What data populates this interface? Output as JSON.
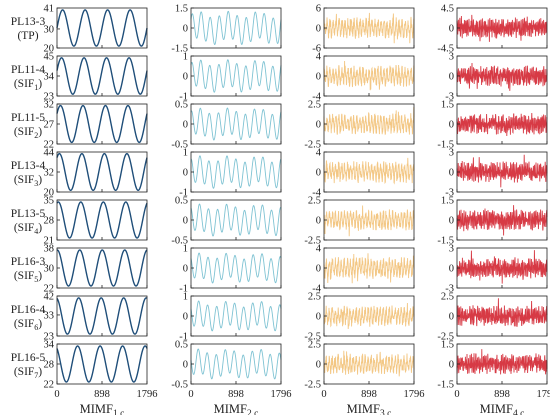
{
  "chart_data": {
    "type": "line",
    "columns": [
      {
        "title": "MIMF",
        "subscript": "1,c",
        "color": "#1F4E79"
      },
      {
        "title": "MIMF",
        "subscript": "2,c",
        "color": "#7FC3D3"
      },
      {
        "title": "MIMF",
        "subscript": "3,c",
        "color": "#F3C784"
      },
      {
        "title": "MIMF",
        "subscript": "4,c",
        "color": "#D73A45"
      }
    ],
    "rows": [
      {
        "name": "PL13-3",
        "sub_main": "(TP)",
        "sub_index": ""
      },
      {
        "name": "PL11-4",
        "sub_main": "(SIF",
        "sub_index": "1"
      },
      {
        "name": "PL11-5",
        "sub_main": "(SIF",
        "sub_index": "2"
      },
      {
        "name": "PL13-4",
        "sub_main": "(SIF",
        "sub_index": "3"
      },
      {
        "name": "PL13-5",
        "sub_main": "(SIF",
        "sub_index": "4"
      },
      {
        "name": "PL16-3",
        "sub_main": "(SIF",
        "sub_index": "5"
      },
      {
        "name": "PL16-4",
        "sub_main": "(SIF",
        "sub_index": "6"
      },
      {
        "name": "PL16-5",
        "sub_main": "(SIF",
        "sub_index": "7"
      }
    ],
    "x_range": [
      0,
      1796
    ],
    "x_ticks": [
      0,
      898,
      1796
    ],
    "x_tick_labels": [
      "0",
      "898",
      "1796"
    ],
    "panels": [
      [
        {
          "ylim": [
            20,
            41
          ],
          "yticks": [
            "41",
            "30",
            "20"
          ],
          "ytick_values": [
            41,
            30,
            20
          ],
          "center": 30.5,
          "amp": 9.5,
          "periods": 4,
          "noise": 0
        },
        {
          "ylim": [
            23,
            45
          ],
          "yticks": [
            "45",
            "34",
            "23"
          ],
          "ytick_values": [
            45,
            34,
            23
          ],
          "center": 34,
          "amp": 10,
          "periods": 4,
          "noise": 0
        },
        {
          "ylim": [
            22,
            32
          ],
          "yticks": [
            "32",
            "27",
            "22"
          ],
          "ytick_values": [
            32,
            27,
            22
          ],
          "center": 27,
          "amp": 4.6,
          "periods": 4,
          "noise": 0
        },
        {
          "ylim": [
            20,
            44
          ],
          "yticks": [
            "44",
            "32",
            "20"
          ],
          "ytick_values": [
            44,
            32,
            20
          ],
          "center": 32,
          "amp": 11,
          "periods": 4,
          "noise": 0
        },
        {
          "ylim": [
            21,
            35
          ],
          "yticks": [
            "35",
            "28",
            "21"
          ],
          "ytick_values": [
            35,
            28,
            21
          ],
          "center": 28,
          "amp": 6.3,
          "periods": 4,
          "noise": 0
        },
        {
          "ylim": [
            22,
            38
          ],
          "yticks": [
            "38",
            "30",
            "22"
          ],
          "ytick_values": [
            38,
            30,
            22
          ],
          "center": 30,
          "amp": 7.2,
          "periods": 4,
          "noise": 0
        },
        {
          "ylim": [
            23,
            42
          ],
          "yticks": [
            "42",
            "33",
            "23"
          ],
          "ytick_values": [
            42,
            33,
            23
          ],
          "center": 32.5,
          "amp": 8.6,
          "periods": 4,
          "noise": 0
        },
        {
          "ylim": [
            22,
            34
          ],
          "yticks": [
            "34",
            "28",
            "22"
          ],
          "ytick_values": [
            34,
            28,
            22
          ],
          "center": 28,
          "amp": 5.4,
          "periods": 4,
          "noise": 0
        }
      ],
      [
        {
          "ylim": [
            -1.5,
            1.5
          ],
          "yticks": [
            "1.5",
            "0",
            "-1.5"
          ],
          "ytick_values": [
            1.5,
            0,
            -1.5
          ],
          "center": 0,
          "amp": 1.0,
          "periods": 10,
          "noise": 0
        },
        {
          "ylim": [
            -1,
            1
          ],
          "yticks": [
            "1",
            "0",
            "-1"
          ],
          "ytick_values": [
            1,
            0,
            -1
          ],
          "center": 0,
          "amp": 0.65,
          "periods": 10,
          "noise": 0
        },
        {
          "ylim": [
            -0.5,
            0.5
          ],
          "yticks": [
            "0.5",
            "0",
            "-0.5"
          ],
          "ytick_values": [
            0.5,
            0,
            -0.5
          ],
          "center": 0,
          "amp": 0.32,
          "periods": 10,
          "noise": 0
        },
        {
          "ylim": [
            -1,
            1
          ],
          "yticks": [
            "1",
            "0",
            "-1"
          ],
          "ytick_values": [
            1,
            0,
            -1
          ],
          "center": 0,
          "amp": 0.65,
          "periods": 10,
          "noise": 0
        },
        {
          "ylim": [
            -0.5,
            0.5
          ],
          "yticks": [
            "0.5",
            "0",
            "-0.5"
          ],
          "ytick_values": [
            0.5,
            0,
            -0.5
          ],
          "center": 0,
          "amp": 0.32,
          "periods": 10,
          "noise": 0
        },
        {
          "ylim": [
            -1,
            1
          ],
          "yticks": [
            "1",
            "0",
            "-1"
          ],
          "ytick_values": [
            1,
            0,
            -1
          ],
          "center": 0,
          "amp": 0.6,
          "periods": 10,
          "noise": 0
        },
        {
          "ylim": [
            -1,
            1
          ],
          "yticks": [
            "1",
            "0",
            "-1"
          ],
          "ytick_values": [
            1,
            0,
            -1
          ],
          "center": 0,
          "amp": 0.6,
          "periods": 10,
          "noise": 0
        },
        {
          "ylim": [
            -0.5,
            0.5
          ],
          "yticks": [
            "0.5",
            "0",
            "-0.5"
          ],
          "ytick_values": [
            0.5,
            0,
            -0.5
          ],
          "center": 0,
          "amp": 0.3,
          "periods": 10,
          "noise": 0
        }
      ],
      [
        {
          "ylim": [
            -6,
            6
          ],
          "yticks": [
            "6",
            "0",
            "-6"
          ],
          "ytick_values": [
            6,
            0,
            -6
          ],
          "center": 0,
          "amp": 2.0,
          "periods": 30,
          "noise": 2.5
        },
        {
          "ylim": [
            -4,
            4
          ],
          "yticks": [
            "4",
            "0",
            "-4"
          ],
          "ytick_values": [
            4,
            0,
            -4
          ],
          "center": 0,
          "amp": 1.3,
          "periods": 30,
          "noise": 1.7
        },
        {
          "ylim": [
            -2.5,
            2.5
          ],
          "yticks": [
            "2.5",
            "0",
            "-2.5"
          ],
          "ytick_values": [
            2.5,
            0,
            -2.5
          ],
          "center": 0,
          "amp": 0.8,
          "periods": 30,
          "noise": 1.0
        },
        {
          "ylim": [
            -4,
            4
          ],
          "yticks": [
            "4",
            "0",
            "-4"
          ],
          "ytick_values": [
            4,
            0,
            -4
          ],
          "center": 0,
          "amp": 1.3,
          "periods": 30,
          "noise": 1.7
        },
        {
          "ylim": [
            -2.5,
            2.5
          ],
          "yticks": [
            "2.5",
            "0",
            "-2.5"
          ],
          "ytick_values": [
            2.5,
            0,
            -2.5
          ],
          "center": 0,
          "amp": 0.8,
          "periods": 30,
          "noise": 1.0
        },
        {
          "ylim": [
            -4,
            4
          ],
          "yticks": [
            "4",
            "0",
            "-4"
          ],
          "ytick_values": [
            4,
            0,
            -4
          ],
          "center": 0,
          "amp": 1.3,
          "periods": 30,
          "noise": 1.7
        },
        {
          "ylim": [
            -2.5,
            2.5
          ],
          "yticks": [
            "2.5",
            "0",
            "-2.5"
          ],
          "ytick_values": [
            2.5,
            0,
            -2.5
          ],
          "center": 0,
          "amp": 0.8,
          "periods": 30,
          "noise": 1.0
        },
        {
          "ylim": [
            -2.5,
            2.5
          ],
          "yticks": [
            "2.5",
            "0",
            "-2.5"
          ],
          "ytick_values": [
            2.5,
            0,
            -2.5
          ],
          "center": 0,
          "amp": 0.8,
          "periods": 30,
          "noise": 1.0
        }
      ],
      [
        {
          "ylim": [
            -4.5,
            4.5
          ],
          "yticks": [
            "4.5",
            "0",
            "-4.5"
          ],
          "ytick_values": [
            4.5,
            0,
            -4.5
          ],
          "center": 0,
          "amp": 1.2,
          "periods": 60,
          "noise": 2.2
        },
        {
          "ylim": [
            -3,
            3
          ],
          "yticks": [
            "3",
            "0",
            "-3"
          ],
          "ytick_values": [
            3,
            0,
            -3
          ],
          "center": 0,
          "amp": 0.8,
          "periods": 60,
          "noise": 1.5
        },
        {
          "ylim": [
            -1.5,
            1.5
          ],
          "yticks": [
            "1.5",
            "0",
            "-1.5"
          ],
          "ytick_values": [
            1.5,
            0,
            -1.5
          ],
          "center": 0,
          "amp": 0.4,
          "periods": 60,
          "noise": 0.75
        },
        {
          "ylim": [
            -3,
            3
          ],
          "yticks": [
            "3",
            "0",
            "-3"
          ],
          "ytick_values": [
            3,
            0,
            -3
          ],
          "center": 0,
          "amp": 0.8,
          "periods": 60,
          "noise": 1.5
        },
        {
          "ylim": [
            -1.5,
            1.5
          ],
          "yticks": [
            "1.5",
            "0",
            "-1.5"
          ],
          "ytick_values": [
            1.5,
            0,
            -1.5
          ],
          "center": 0,
          "amp": 0.4,
          "periods": 60,
          "noise": 0.75
        },
        {
          "ylim": [
            -3,
            3
          ],
          "yticks": [
            "3",
            "0",
            "-3"
          ],
          "ytick_values": [
            3,
            0,
            -3
          ],
          "center": 0,
          "amp": 0.8,
          "periods": 60,
          "noise": 1.5
        },
        {
          "ylim": [
            -2.5,
            2.5
          ],
          "yticks": [
            "2.5",
            "0",
            "-2.5"
          ],
          "ytick_values": [
            2.5,
            0,
            -2.5
          ],
          "center": 0,
          "amp": 0.7,
          "periods": 60,
          "noise": 1.25
        },
        {
          "ylim": [
            -1.5,
            1.5
          ],
          "yticks": [
            "1.5",
            "0",
            "-1.5"
          ],
          "ytick_values": [
            1.5,
            0,
            -1.5
          ],
          "center": 0,
          "amp": 0.4,
          "periods": 60,
          "noise": 0.75
        }
      ]
    ]
  }
}
